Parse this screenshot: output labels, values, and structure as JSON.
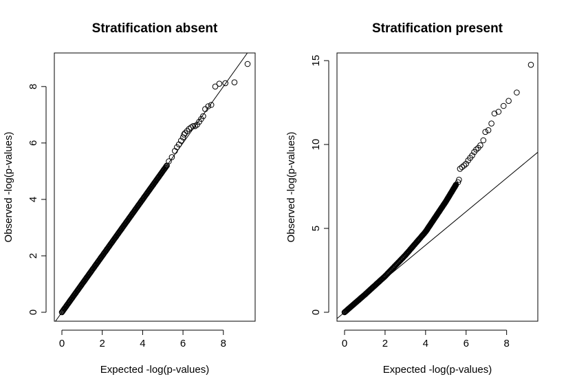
{
  "chart_data": [
    {
      "type": "scatter",
      "title": "Stratification absent",
      "xlabel": "Expected -log(p-values)",
      "ylabel": "Observed -log(p-values)",
      "xlim": [
        0,
        9.2
      ],
      "ylim": [
        0,
        8.8
      ],
      "xticks": [
        "0",
        "2",
        "4",
        "6",
        "8"
      ],
      "yticks": [
        "0",
        "2",
        "4",
        "6",
        "8"
      ],
      "grid": false,
      "reference_line": "y = x",
      "dense_segment": {
        "from": [
          0,
          0
        ],
        "to": [
          5.2,
          5.2
        ]
      },
      "outliers": [
        {
          "x": 5.3,
          "y": 5.35
        },
        {
          "x": 5.45,
          "y": 5.5
        },
        {
          "x": 5.6,
          "y": 5.72
        },
        {
          "x": 5.7,
          "y": 5.85
        },
        {
          "x": 5.8,
          "y": 5.95
        },
        {
          "x": 5.9,
          "y": 6.08
        },
        {
          "x": 6.0,
          "y": 6.2
        },
        {
          "x": 6.05,
          "y": 6.3
        },
        {
          "x": 6.1,
          "y": 6.35
        },
        {
          "x": 6.2,
          "y": 6.42
        },
        {
          "x": 6.3,
          "y": 6.5
        },
        {
          "x": 6.4,
          "y": 6.55
        },
        {
          "x": 6.5,
          "y": 6.6
        },
        {
          "x": 6.6,
          "y": 6.6
        },
        {
          "x": 6.7,
          "y": 6.65
        },
        {
          "x": 6.8,
          "y": 6.75
        },
        {
          "x": 6.9,
          "y": 6.85
        },
        {
          "x": 7.0,
          "y": 6.95
        },
        {
          "x": 7.1,
          "y": 7.2
        },
        {
          "x": 7.25,
          "y": 7.3
        },
        {
          "x": 7.4,
          "y": 7.35
        },
        {
          "x": 7.6,
          "y": 8.0
        },
        {
          "x": 7.8,
          "y": 8.1
        },
        {
          "x": 8.1,
          "y": 8.12
        },
        {
          "x": 8.55,
          "y": 8.15
        },
        {
          "x": 9.2,
          "y": 8.8
        }
      ]
    },
    {
      "type": "scatter",
      "title": "Stratification present",
      "xlabel": "Expected -log(p-values)",
      "ylabel": "Observed -log(p-values)",
      "xlim": [
        0,
        9.2
      ],
      "ylim": [
        0,
        14.8
      ],
      "xticks": [
        "0",
        "2",
        "4",
        "6",
        "8"
      ],
      "yticks": [
        "0",
        "5",
        "10",
        "15"
      ],
      "grid": false,
      "reference_line": "y = x",
      "curve_points": [
        {
          "x": 0,
          "y": 0
        },
        {
          "x": 1,
          "y": 1.05
        },
        {
          "x": 2,
          "y": 2.15
        },
        {
          "x": 3,
          "y": 3.4
        },
        {
          "x": 4,
          "y": 4.8
        },
        {
          "x": 4.5,
          "y": 5.7
        },
        {
          "x": 5,
          "y": 6.6
        },
        {
          "x": 5.5,
          "y": 7.6
        }
      ],
      "outliers": [
        {
          "x": 5.6,
          "y": 7.75
        },
        {
          "x": 5.65,
          "y": 7.9
        },
        {
          "x": 5.7,
          "y": 8.55
        },
        {
          "x": 5.8,
          "y": 8.65
        },
        {
          "x": 5.9,
          "y": 8.75
        },
        {
          "x": 6.0,
          "y": 8.85
        },
        {
          "x": 6.1,
          "y": 9.05
        },
        {
          "x": 6.2,
          "y": 9.2
        },
        {
          "x": 6.3,
          "y": 9.35
        },
        {
          "x": 6.4,
          "y": 9.55
        },
        {
          "x": 6.5,
          "y": 9.7
        },
        {
          "x": 6.6,
          "y": 9.8
        },
        {
          "x": 6.7,
          "y": 9.95
        },
        {
          "x": 6.85,
          "y": 10.25
        },
        {
          "x": 6.95,
          "y": 10.75
        },
        {
          "x": 7.1,
          "y": 10.85
        },
        {
          "x": 7.25,
          "y": 11.25
        },
        {
          "x": 7.4,
          "y": 11.85
        },
        {
          "x": 7.6,
          "y": 11.95
        },
        {
          "x": 7.85,
          "y": 12.3
        },
        {
          "x": 8.1,
          "y": 12.6
        },
        {
          "x": 8.5,
          "y": 13.1
        },
        {
          "x": 9.2,
          "y": 14.75
        }
      ]
    }
  ]
}
